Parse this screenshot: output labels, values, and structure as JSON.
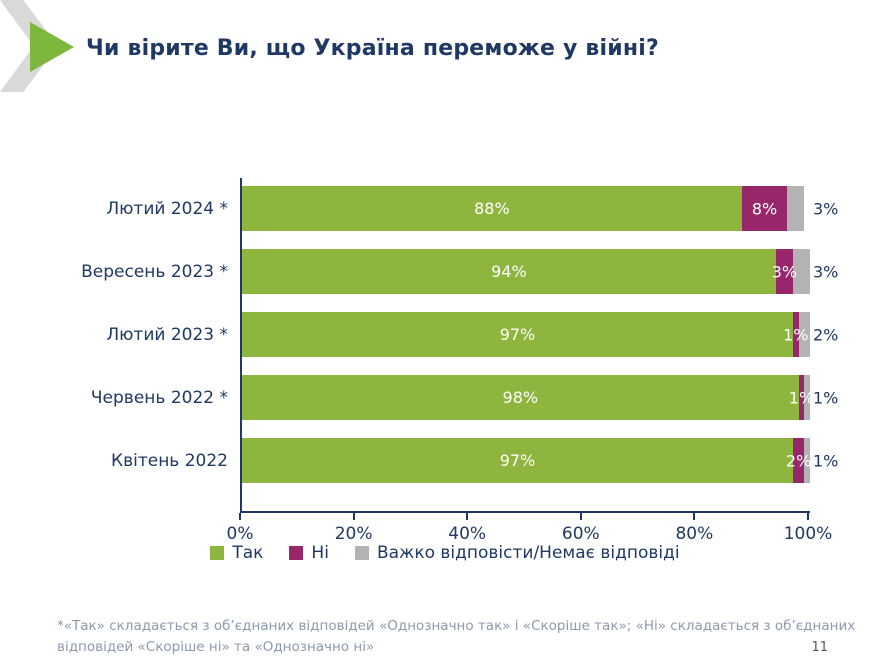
{
  "slide": {
    "title": "Чи вірите Ви, що Україна переможе у війні?",
    "page_number": "11",
    "footnote": {
      "line1": "*«Так» складається з об’єднаних відповідей «Однозначно так» і «Скоріше так»; «Ні» складається з об’єднаних",
      "line2": "відповідей «Скоріше ні» та «Однозначно ні»"
    },
    "accent": {
      "chevron_color": "#d9d9d9",
      "triangle_color": "#7db73e"
    },
    "colors": {
      "title_text": "#1f3864",
      "axis_text": "#1f3864",
      "footnote_text": "#8c9aac"
    }
  },
  "chart_data": {
    "type": "bar",
    "orientation": "horizontal",
    "stacked": true,
    "title": "Чи вірите Ви, що Україна переможе у війні?",
    "categories": [
      "Лютий 2024 *",
      "Вересень 2023 *",
      "Лютий 2023 *",
      "Червень 2022 *",
      "Квітень 2022"
    ],
    "series": [
      {
        "name": "Так",
        "color": "#8eb63f",
        "values": [
          88,
          94,
          97,
          98,
          97
        ]
      },
      {
        "name": "Ні",
        "color": "#97266b",
        "values": [
          8,
          3,
          1,
          1,
          2
        ]
      },
      {
        "name": "Важко відповісти/Немає відповіді",
        "color": "#b3b3b3",
        "values": [
          3,
          3,
          2,
          1,
          1
        ]
      }
    ],
    "x_ticks": [
      "0%",
      "20%",
      "40%",
      "60%",
      "80%",
      "100%"
    ],
    "xlim": [
      0,
      100
    ],
    "grid": false,
    "legend_position": "bottom",
    "data_label_suffix": "%"
  }
}
